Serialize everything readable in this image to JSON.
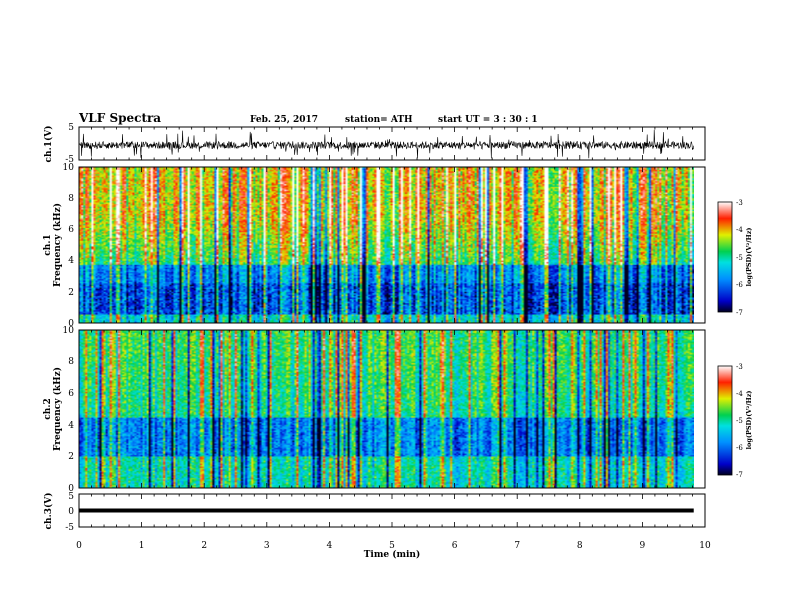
{
  "header": {
    "title": "VLF Spectra",
    "date": "Feb. 25, 2017",
    "station": "station= ATH",
    "start": "start  UT  =   3  : 30 : 1"
  },
  "chart_data": [
    {
      "type": "line",
      "ylabel": "ch.1(V)",
      "ylim": [
        -5,
        5
      ],
      "ytick_labels": [
        "5",
        "-5"
      ],
      "xlim": [
        0,
        10
      ],
      "trace": "noisy waveform around -0.5 V spanning about -4 to 4 V, from 0 to 9.8 min"
    },
    {
      "type": "heatmap",
      "ylabel": "ch.1 Frequency (kHz)",
      "ylabel_line1": "ch.1",
      "ylabel_line2": "Frequency  (kHz)",
      "ylim": [
        0,
        10
      ],
      "ytick_labels": [
        "0",
        "2",
        "4",
        "6",
        "8",
        "10"
      ],
      "xlim": [
        0,
        10
      ],
      "data_extent_min": 9.82,
      "colorbar": {
        "label": "log(PSD)(V²/Hz)",
        "range": [
          -7,
          -3
        ],
        "ticks": [
          "-3",
          "-4",
          "-5",
          "-6",
          "-7"
        ]
      }
    },
    {
      "type": "heatmap",
      "ylabel": "ch.2 Frequency (kHz)",
      "ylabel_line1": "ch.2",
      "ylabel_line2": "Frequency  (kHz)",
      "ylim": [
        0,
        10
      ],
      "ytick_labels": [
        "0",
        "2",
        "4",
        "6",
        "8",
        "10"
      ],
      "xlim": [
        0,
        10
      ],
      "data_extent_min": 9.82,
      "colorbar": {
        "label": "log(PSD)(V²/Hz)",
        "range": [
          -7,
          -3
        ],
        "ticks": [
          "-3",
          "-4",
          "-5",
          "-6",
          "-7"
        ]
      }
    },
    {
      "type": "line",
      "ylabel": "ch.3(V)",
      "ylim": [
        -5,
        5
      ],
      "ytick_labels": [
        "5",
        "0",
        "-5"
      ],
      "xlim": [
        0,
        10
      ],
      "trace": "flat thick line at about 0 V from 0 to 9.8 min"
    }
  ],
  "xaxis": {
    "label": "Time  (min)",
    "ticks": [
      "0",
      "1",
      "2",
      "3",
      "4",
      "5",
      "6",
      "7",
      "8",
      "9",
      "10"
    ]
  },
  "colors": {
    "frame": "#000000",
    "background": "#ffffff"
  }
}
